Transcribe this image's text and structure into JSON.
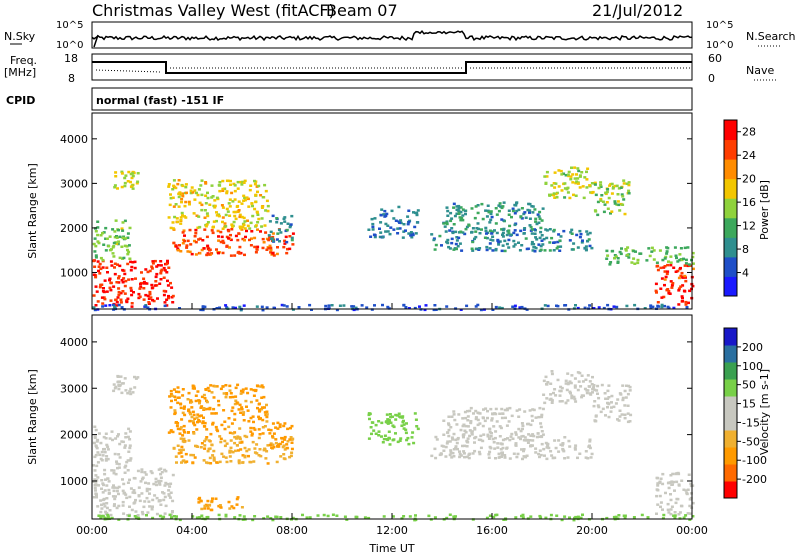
{
  "header": {
    "station": "Christmas Valley West (fitACF)",
    "beam": "Beam 07",
    "date": "21/Jul/2012"
  },
  "strip_labels": {
    "nsky": "N.Sky",
    "nsearch": "N.Search",
    "freq": "Freq.",
    "freq_unit": "[MHz]",
    "nave": "Nave",
    "cpid": "CPID",
    "cpid_value": "normal (fast) -151 IF",
    "left_top_tick": "10^5",
    "left_bottom_tick": "10^0",
    "right_top_tick": "10^5",
    "right_bottom_tick": "10^0",
    "freq_top_tick": "18",
    "freq_bottom_tick": "8",
    "nave_top_tick": "60",
    "nave_bottom_tick": "0"
  },
  "colors": {
    "power_scale": [
      "#1a1aff",
      "#1f4fc8",
      "#2f8f8f",
      "#3ca85c",
      "#8fd23c",
      "#f2c600",
      "#ff8c00",
      "#ff3d00",
      "#ff0000"
    ],
    "velocity_scale": [
      "#ff0000",
      "#ff6a00",
      "#ff9a00",
      "#f0b030",
      "#c8c8c0",
      "#c8c8c0",
      "#78d048",
      "#3aa050",
      "#2a6fa0",
      "#1818c8"
    ]
  },
  "chart_data": [
    {
      "type": "heatmap",
      "panel": "power",
      "xlabel": "",
      "ylabel": "Slant Range [km]",
      "x_ticks": [
        "00:00",
        "04:00",
        "08:00",
        "12:00",
        "16:00",
        "20:00",
        "00:00"
      ],
      "xlim_hours": [
        0,
        24
      ],
      "y_ticks": [
        1000,
        2000,
        3000,
        4000
      ],
      "ylim": [
        180,
        4580
      ],
      "colorbar_label": "Power [dB]",
      "colorbar_ticks": [
        4,
        8,
        12,
        16,
        20,
        24,
        28
      ],
      "colorbar_range": [
        0,
        30
      ],
      "regions": [
        {
          "t0": 0.0,
          "t1": 3.2,
          "r0": 250,
          "r1": 1300,
          "value": 27
        },
        {
          "t0": 0.0,
          "t1": 1.5,
          "r0": 1300,
          "r1": 2200,
          "value": 14
        },
        {
          "t0": 3.2,
          "t1": 8.0,
          "r0": 1400,
          "r1": 2000,
          "value": 25
        },
        {
          "t0": 3.0,
          "t1": 7.0,
          "r0": 2000,
          "r1": 3100,
          "value": 18
        },
        {
          "t0": 7.0,
          "t1": 8.0,
          "r0": 1700,
          "r1": 2300,
          "value": 8
        },
        {
          "t0": 0.8,
          "t1": 1.8,
          "r0": 2900,
          "r1": 3300,
          "value": 17
        },
        {
          "t0": 11.0,
          "t1": 13.0,
          "r0": 1800,
          "r1": 2500,
          "value": 7
        },
        {
          "t0": 13.5,
          "t1": 20.0,
          "r0": 1500,
          "r1": 2000,
          "value": 8
        },
        {
          "t0": 14.0,
          "t1": 18.0,
          "r0": 1900,
          "r1": 2600,
          "value": 9
        },
        {
          "t0": 18.0,
          "t1": 20.0,
          "r0": 2700,
          "r1": 3400,
          "value": 16
        },
        {
          "t0": 20.0,
          "t1": 21.5,
          "r0": 2300,
          "r1": 3100,
          "value": 15
        },
        {
          "t0": 22.5,
          "t1": 24.0,
          "r0": 300,
          "r1": 1200,
          "value": 26
        },
        {
          "t0": 20.5,
          "t1": 24.0,
          "r0": 1200,
          "r1": 1600,
          "value": 13
        },
        {
          "t0": 0.0,
          "t1": 24.0,
          "r0": 180,
          "r1": 300,
          "value": 5
        }
      ]
    },
    {
      "type": "heatmap",
      "panel": "velocity",
      "xlabel": "Time UT",
      "ylabel": "Slant Range [km]",
      "x_ticks": [
        "00:00",
        "04:00",
        "08:00",
        "12:00",
        "16:00",
        "20:00",
        "00:00"
      ],
      "xlim_hours": [
        0,
        24
      ],
      "y_ticks": [
        1000,
        2000,
        3000,
        4000
      ],
      "ylim": [
        180,
        4580
      ],
      "colorbar_label": "Velocity [m s-1]",
      "colorbar_ticks": [
        -200,
        -100,
        -50,
        -15,
        15,
        50,
        100,
        200
      ],
      "colorbar_range": [
        -250,
        250
      ],
      "regions": [
        {
          "t0": 0.0,
          "t1": 3.2,
          "r0": 250,
          "r1": 1300,
          "value": 0
        },
        {
          "t0": 0.0,
          "t1": 1.5,
          "r0": 1300,
          "r1": 2200,
          "value": 0
        },
        {
          "t0": 3.2,
          "t1": 8.0,
          "r0": 1400,
          "r1": 2000,
          "value": -40
        },
        {
          "t0": 3.0,
          "t1": 7.0,
          "r0": 2000,
          "r1": 3100,
          "value": -60
        },
        {
          "t0": 7.0,
          "t1": 8.0,
          "r0": 1700,
          "r1": 2300,
          "value": -80
        },
        {
          "t0": 0.8,
          "t1": 1.8,
          "r0": 2900,
          "r1": 3300,
          "value": 0
        },
        {
          "t0": 11.0,
          "t1": 13.0,
          "r0": 1800,
          "r1": 2500,
          "value": 30
        },
        {
          "t0": 13.5,
          "t1": 20.0,
          "r0": 1500,
          "r1": 2000,
          "value": 0
        },
        {
          "t0": 14.0,
          "t1": 18.0,
          "r0": 1900,
          "r1": 2600,
          "value": 0
        },
        {
          "t0": 18.0,
          "t1": 20.0,
          "r0": 2700,
          "r1": 3400,
          "value": 0
        },
        {
          "t0": 20.0,
          "t1": 21.5,
          "r0": 2300,
          "r1": 3100,
          "value": 0
        },
        {
          "t0": 22.5,
          "t1": 24.0,
          "r0": 300,
          "r1": 1200,
          "value": 0
        },
        {
          "t0": 4.0,
          "t1": 6.0,
          "r0": 400,
          "r1": 700,
          "value": -60
        },
        {
          "t0": 0.0,
          "t1": 24.0,
          "r0": 180,
          "r1": 300,
          "value": 30
        }
      ]
    }
  ]
}
